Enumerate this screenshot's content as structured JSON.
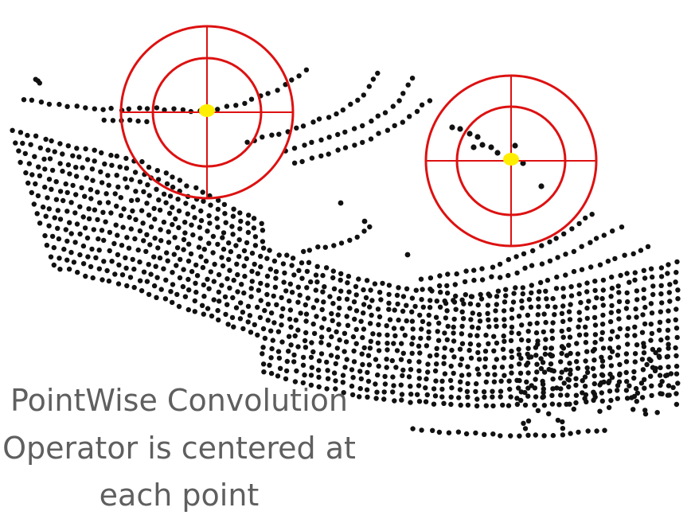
{
  "caption": {
    "line1": "PointWise Convolution",
    "line2": "Operator is centered at",
    "line3": "each point"
  },
  "colors": {
    "background": "#ffffff",
    "points": "#111111",
    "kernel_ring": "#dd1111",
    "center_point": "#ffee00",
    "caption_text": "#5f5f5f"
  }
}
